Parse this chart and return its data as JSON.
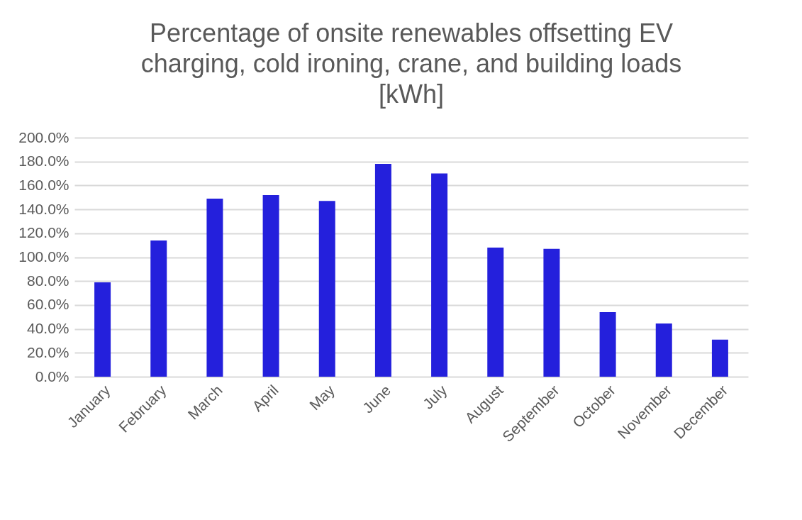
{
  "chart_data": {
    "type": "bar",
    "title": "Percentage of onsite renewables offsetting EV charging, cold ironing, crane, and building loads [kWh]",
    "categories": [
      "January",
      "February",
      "March",
      "April",
      "May",
      "June",
      "July",
      "August",
      "September",
      "October",
      "November",
      "December"
    ],
    "values": [
      79,
      114,
      149,
      152,
      147,
      178,
      170,
      108,
      107,
      54,
      44.5,
      31
    ],
    "color": "#2420dc",
    "ylim": [
      0,
      200
    ],
    "yticks": [
      {
        "value": 0,
        "label": "0.0%"
      },
      {
        "value": 20,
        "label": "20.0%"
      },
      {
        "value": 40,
        "label": "40.0%"
      },
      {
        "value": 60,
        "label": "60.0%"
      },
      {
        "value": 80,
        "label": "80.0%"
      },
      {
        "value": 100,
        "label": "100.0%"
      },
      {
        "value": 120,
        "label": "120.0%"
      },
      {
        "value": 140,
        "label": "140.0%"
      },
      {
        "value": 160,
        "label": "160.0%"
      },
      {
        "value": 180,
        "label": "180.0%"
      },
      {
        "value": 200,
        "label": "200.0%"
      }
    ],
    "grid": "y"
  }
}
